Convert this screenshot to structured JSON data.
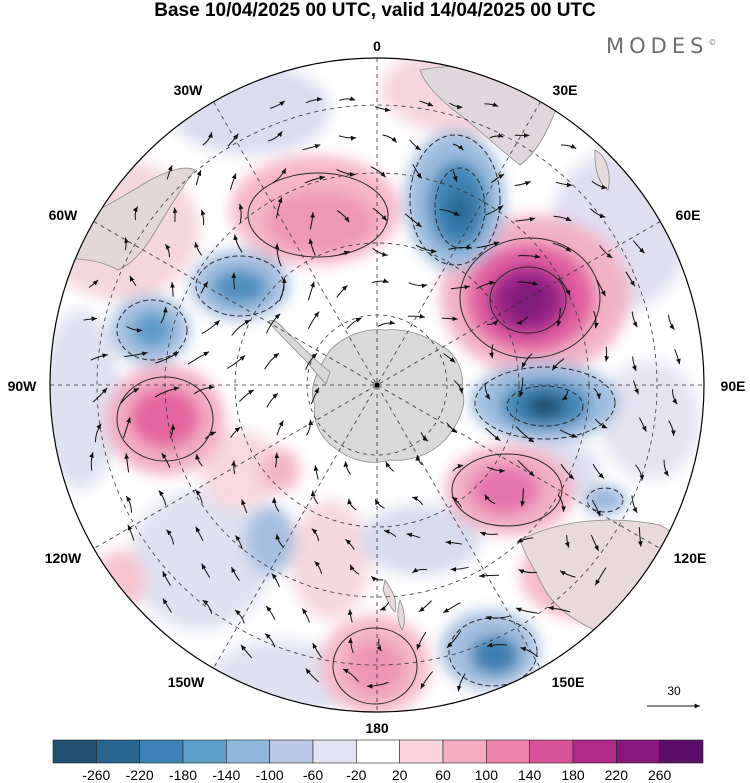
{
  "title": "Base 10/04/2025 00 UTC, valid 14/04/2025 00 UTC",
  "brand": "MODES",
  "brand_mark": "©",
  "longitude_labels": {
    "top": "0",
    "bottom": "180",
    "left": "90W",
    "right": "90E",
    "nw60": "60W",
    "nw30": "30W",
    "ne30": "30E",
    "ne60": "60E",
    "sw120": "120W",
    "sw150": "150W",
    "se120": "120E",
    "se150": "150E"
  },
  "vector_reference": {
    "label": "30"
  },
  "colorbar": {
    "ticks": [
      "-260",
      "-220",
      "-180",
      "-140",
      "-100",
      "-60",
      "-20",
      "20",
      "60",
      "100",
      "140",
      "180",
      "220",
      "260"
    ],
    "colors": [
      "#1f4e6e",
      "#27658f",
      "#3a83b4",
      "#5d9fcb",
      "#8fb7dc",
      "#bac9e6",
      "#e2e4f1",
      "#ffffff",
      "#fad4dc",
      "#f4aec4",
      "#ec84ac",
      "#d9539a",
      "#b12a8c",
      "#86177c",
      "#5b0f6b"
    ]
  },
  "map_features": {
    "projection": "south polar stereographic",
    "graticule": "dashed",
    "land_color": "#d9d9d9"
  }
}
